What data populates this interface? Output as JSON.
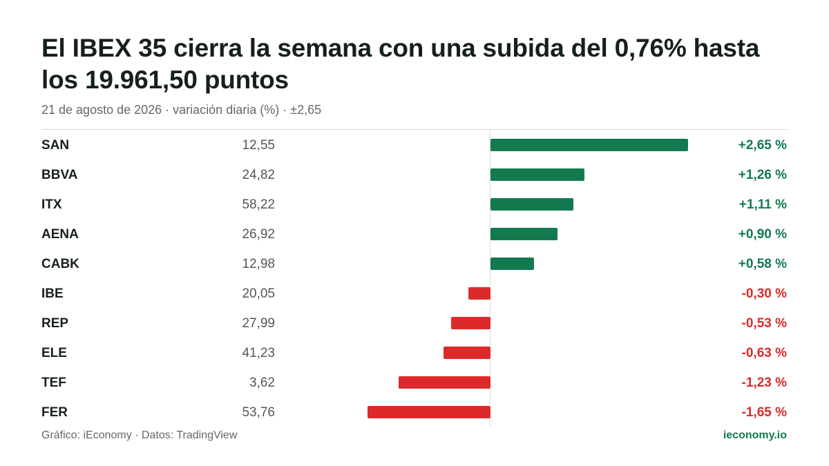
{
  "header": {
    "title": "El IBEX 35 cierra la semana con una subida del 0,76% hasta los 19.961,50 puntos",
    "subtitle": "21 de agosto de 2026 · variación diaria (%) · ±2,65"
  },
  "footer": {
    "source": "Gráfico: iEconomy · Datos: TradingView",
    "brand": "ieconomy.io"
  },
  "colors": {
    "positive": "#137a50",
    "negative": "#dc2a2a"
  },
  "chart_data": {
    "type": "bar",
    "orientation": "horizontal",
    "title": "El IBEX 35 cierra la semana con una subida del 0,76% hasta los 19.961,50 puntos",
    "subtitle": "21 de agosto de 2026 · variación diaria (%) · ±2,65",
    "xlim": [
      -2.65,
      2.65
    ],
    "grid": false,
    "categories": [
      "SAN",
      "BBVA",
      "ITX",
      "AENA",
      "CABK",
      "IBE",
      "REP",
      "ELE",
      "TEF",
      "FER"
    ],
    "prices": [
      "12,55",
      "24,82",
      "58,22",
      "26,92",
      "12,98",
      "20,05",
      "27,99",
      "41,23",
      "3,62",
      "53,76"
    ],
    "values": [
      2.65,
      1.26,
      1.11,
      0.9,
      0.58,
      -0.3,
      -0.53,
      -0.63,
      -1.23,
      -1.65
    ],
    "labels": [
      "+2,65 %",
      "+1,26 %",
      "+1,11 %",
      "+0,90 %",
      "+0,58 %",
      "-0,30 %",
      "-0,53 %",
      "-0,63 %",
      "-1,23 %",
      "-1,65 %"
    ]
  }
}
